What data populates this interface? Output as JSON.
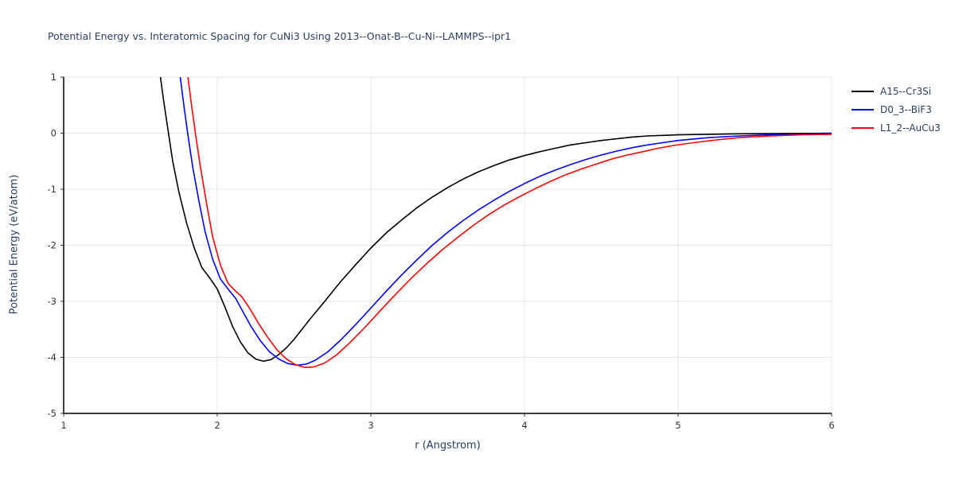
{
  "chart_data": {
    "type": "line",
    "title": "Potential Energy vs. Interatomic Spacing for CuNi3 Using 2013--Onat-B--Cu-Ni--LAMMPS--ipr1",
    "xlabel": "r (Angstrom)",
    "ylabel": "Potential Energy (eV/atom)",
    "xlim": [
      1,
      6
    ],
    "ylim": [
      -5,
      1
    ],
    "xticks": [
      1,
      2,
      3,
      4,
      5,
      6
    ],
    "yticks": [
      -5,
      -4,
      -3,
      -2,
      -1,
      0,
      1
    ],
    "grid": true,
    "legend_position": "outside-top-right",
    "style": {
      "background": "#ffffff",
      "grid_color": "#e5e5e5",
      "axis_color": "#000000",
      "tick_color": "#333333",
      "title_color": "#2a3f5f"
    },
    "series": [
      {
        "name": "A15--Cr3Si",
        "color": "#000000",
        "points": [
          [
            1.62,
            1.2
          ],
          [
            1.65,
            0.6
          ],
          [
            1.68,
            0.05
          ],
          [
            1.71,
            -0.5
          ],
          [
            1.75,
            -1.05
          ],
          [
            1.8,
            -1.6
          ],
          [
            1.85,
            -2.05
          ],
          [
            1.9,
            -2.4
          ],
          [
            1.95,
            -2.58
          ],
          [
            2.0,
            -2.78
          ],
          [
            2.05,
            -3.1
          ],
          [
            2.1,
            -3.45
          ],
          [
            2.15,
            -3.72
          ],
          [
            2.2,
            -3.92
          ],
          [
            2.25,
            -4.03
          ],
          [
            2.3,
            -4.07
          ],
          [
            2.35,
            -4.04
          ],
          [
            2.4,
            -3.95
          ],
          [
            2.45,
            -3.83
          ],
          [
            2.5,
            -3.68
          ],
          [
            2.6,
            -3.33
          ],
          [
            2.7,
            -3.0
          ],
          [
            2.8,
            -2.66
          ],
          [
            2.9,
            -2.35
          ],
          [
            3.0,
            -2.05
          ],
          [
            3.1,
            -1.78
          ],
          [
            3.2,
            -1.55
          ],
          [
            3.3,
            -1.33
          ],
          [
            3.4,
            -1.14
          ],
          [
            3.5,
            -0.97
          ],
          [
            3.6,
            -0.82
          ],
          [
            3.7,
            -0.69
          ],
          [
            3.8,
            -0.58
          ],
          [
            3.9,
            -0.48
          ],
          [
            4.0,
            -0.4
          ],
          [
            4.1,
            -0.33
          ],
          [
            4.2,
            -0.27
          ],
          [
            4.3,
            -0.21
          ],
          [
            4.4,
            -0.17
          ],
          [
            4.5,
            -0.13
          ],
          [
            4.6,
            -0.1
          ],
          [
            4.7,
            -0.07
          ],
          [
            4.8,
            -0.05
          ],
          [
            4.9,
            -0.04
          ],
          [
            5.0,
            -0.03
          ],
          [
            5.2,
            -0.02
          ],
          [
            5.4,
            -0.012
          ],
          [
            5.6,
            -0.008
          ],
          [
            5.8,
            -0.004
          ],
          [
            6.0,
            -0.002
          ]
        ]
      },
      {
        "name": "D0_3--BiF3",
        "color": "#0000ff",
        "points": [
          [
            1.75,
            1.2
          ],
          [
            1.78,
            0.55
          ],
          [
            1.81,
            -0.05
          ],
          [
            1.84,
            -0.6
          ],
          [
            1.88,
            -1.2
          ],
          [
            1.92,
            -1.75
          ],
          [
            1.97,
            -2.25
          ],
          [
            2.02,
            -2.6
          ],
          [
            2.07,
            -2.78
          ],
          [
            2.12,
            -2.95
          ],
          [
            2.17,
            -3.2
          ],
          [
            2.22,
            -3.45
          ],
          [
            2.28,
            -3.7
          ],
          [
            2.34,
            -3.9
          ],
          [
            2.4,
            -4.03
          ],
          [
            2.46,
            -4.11
          ],
          [
            2.52,
            -4.14
          ],
          [
            2.58,
            -4.12
          ],
          [
            2.64,
            -4.05
          ],
          [
            2.72,
            -3.9
          ],
          [
            2.8,
            -3.7
          ],
          [
            2.9,
            -3.42
          ],
          [
            3.0,
            -3.12
          ],
          [
            3.1,
            -2.82
          ],
          [
            3.2,
            -2.53
          ],
          [
            3.3,
            -2.26
          ],
          [
            3.4,
            -2.0
          ],
          [
            3.5,
            -1.77
          ],
          [
            3.6,
            -1.56
          ],
          [
            3.7,
            -1.37
          ],
          [
            3.8,
            -1.2
          ],
          [
            3.9,
            -1.04
          ],
          [
            4.0,
            -0.9
          ],
          [
            4.1,
            -0.77
          ],
          [
            4.2,
            -0.66
          ],
          [
            4.3,
            -0.56
          ],
          [
            4.4,
            -0.47
          ],
          [
            4.5,
            -0.39
          ],
          [
            4.6,
            -0.32
          ],
          [
            4.7,
            -0.26
          ],
          [
            4.8,
            -0.21
          ],
          [
            4.9,
            -0.17
          ],
          [
            5.0,
            -0.13
          ],
          [
            5.2,
            -0.08
          ],
          [
            5.4,
            -0.05
          ],
          [
            5.6,
            -0.03
          ],
          [
            5.8,
            -0.02
          ],
          [
            6.0,
            -0.01
          ]
        ]
      },
      {
        "name": "L1_2--AuCu3",
        "color": "#ff0000",
        "points": [
          [
            1.8,
            1.2
          ],
          [
            1.83,
            0.55
          ],
          [
            1.86,
            -0.05
          ],
          [
            1.89,
            -0.6
          ],
          [
            1.93,
            -1.25
          ],
          [
            1.97,
            -1.85
          ],
          [
            2.02,
            -2.35
          ],
          [
            2.07,
            -2.68
          ],
          [
            2.12,
            -2.82
          ],
          [
            2.16,
            -2.92
          ],
          [
            2.21,
            -3.12
          ],
          [
            2.27,
            -3.4
          ],
          [
            2.33,
            -3.65
          ],
          [
            2.39,
            -3.87
          ],
          [
            2.45,
            -4.03
          ],
          [
            2.51,
            -4.13
          ],
          [
            2.57,
            -4.18
          ],
          [
            2.63,
            -4.17
          ],
          [
            2.7,
            -4.1
          ],
          [
            2.78,
            -3.95
          ],
          [
            2.87,
            -3.72
          ],
          [
            2.97,
            -3.44
          ],
          [
            3.07,
            -3.14
          ],
          [
            3.17,
            -2.85
          ],
          [
            3.27,
            -2.57
          ],
          [
            3.37,
            -2.31
          ],
          [
            3.47,
            -2.07
          ],
          [
            3.57,
            -1.85
          ],
          [
            3.67,
            -1.64
          ],
          [
            3.77,
            -1.45
          ],
          [
            3.87,
            -1.28
          ],
          [
            3.97,
            -1.13
          ],
          [
            4.07,
            -0.99
          ],
          [
            4.17,
            -0.86
          ],
          [
            4.27,
            -0.74
          ],
          [
            4.37,
            -0.64
          ],
          [
            4.47,
            -0.55
          ],
          [
            4.57,
            -0.46
          ],
          [
            4.67,
            -0.39
          ],
          [
            4.77,
            -0.33
          ],
          [
            4.87,
            -0.27
          ],
          [
            4.97,
            -0.22
          ],
          [
            5.1,
            -0.17
          ],
          [
            5.25,
            -0.12
          ],
          [
            5.4,
            -0.08
          ],
          [
            5.6,
            -0.05
          ],
          [
            5.8,
            -0.03
          ],
          [
            6.0,
            -0.02
          ]
        ]
      }
    ]
  }
}
